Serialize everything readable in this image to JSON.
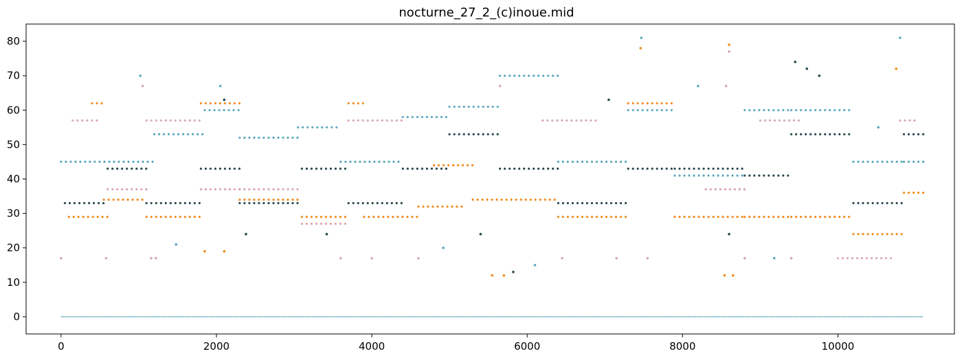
{
  "chart_data": {
    "type": "scatter",
    "title": "nocturne_27_2_(c)inoue.mid",
    "xlabel": "",
    "ylabel": "",
    "xlim": [
      -450,
      11500
    ],
    "ylim": [
      -5,
      85
    ],
    "x_ticks": [
      0,
      2000,
      4000,
      6000,
      8000,
      10000
    ],
    "y_ticks": [
      0,
      10,
      20,
      30,
      40,
      50,
      60,
      70,
      80
    ],
    "grid": false,
    "legend": "none",
    "colors": {
      "teal": "#5aa9bd",
      "orange": "#f28c1e",
      "pink": "#d9a8b0",
      "dark": "#2d4a52",
      "baseline": "#6fb0c4"
    },
    "series": [
      {
        "color": "teal",
        "segments": [
          {
            "x0": 0,
            "x1": 1200,
            "y": 45
          },
          {
            "x0": 1200,
            "x1": 1850,
            "y": 53
          },
          {
            "x0": 1850,
            "x1": 2300,
            "y": 60
          },
          {
            "x0": 2300,
            "x1": 3050,
            "y": 52
          },
          {
            "x0": 3050,
            "x1": 3600,
            "y": 55
          },
          {
            "x0": 3600,
            "x1": 4400,
            "y": 45
          },
          {
            "x0": 4400,
            "x1": 5000,
            "y": 58
          },
          {
            "x0": 5000,
            "x1": 5650,
            "y": 61
          },
          {
            "x0": 5650,
            "x1": 6400,
            "y": 70
          },
          {
            "x0": 6400,
            "x1": 7300,
            "y": 45
          },
          {
            "x0": 7300,
            "x1": 7900,
            "y": 60
          },
          {
            "x0": 7900,
            "x1": 8800,
            "y": 41
          },
          {
            "x0": 8800,
            "x1": 9400,
            "y": 60
          },
          {
            "x0": 9400,
            "x1": 10200,
            "y": 60
          },
          {
            "x0": 10200,
            "x1": 10850,
            "y": 45
          },
          {
            "x0": 10850,
            "x1": 11100,
            "y": 45
          }
        ],
        "points": [
          [
            1020,
            70
          ],
          [
            1480,
            21
          ],
          [
            2050,
            67
          ],
          [
            4920,
            20
          ],
          [
            6100,
            15
          ],
          [
            7470,
            81
          ],
          [
            8200,
            67
          ],
          [
            9180,
            17
          ],
          [
            10520,
            55
          ],
          [
            10800,
            81
          ]
        ]
      },
      {
        "color": "orange",
        "segments": [
          {
            "x0": 100,
            "x1": 600,
            "y": 29
          },
          {
            "x0": 400,
            "x1": 550,
            "y": 62
          },
          {
            "x0": 550,
            "x1": 1100,
            "y": 34
          },
          {
            "x0": 1100,
            "x1": 1800,
            "y": 29
          },
          {
            "x0": 1800,
            "x1": 2300,
            "y": 62
          },
          {
            "x0": 2300,
            "x1": 3100,
            "y": 34
          },
          {
            "x0": 3100,
            "x1": 3700,
            "y": 29
          },
          {
            "x0": 3700,
            "x1": 3900,
            "y": 62
          },
          {
            "x0": 3900,
            "x1": 4600,
            "y": 29
          },
          {
            "x0": 4600,
            "x1": 5200,
            "y": 32
          },
          {
            "x0": 4800,
            "x1": 5300,
            "y": 44
          },
          {
            "x0": 5300,
            "x1": 6400,
            "y": 34
          },
          {
            "x0": 6400,
            "x1": 7300,
            "y": 29
          },
          {
            "x0": 7300,
            "x1": 7900,
            "y": 62
          },
          {
            "x0": 7900,
            "x1": 8800,
            "y": 29
          },
          {
            "x0": 8800,
            "x1": 9400,
            "y": 29
          },
          {
            "x0": 9400,
            "x1": 10200,
            "y": 29
          },
          {
            "x0": 10200,
            "x1": 10850,
            "y": 24
          },
          {
            "x0": 10850,
            "x1": 11100,
            "y": 36
          }
        ],
        "points": [
          [
            1850,
            19
          ],
          [
            2100,
            19
          ],
          [
            5550,
            12
          ],
          [
            5700,
            12
          ],
          [
            8540,
            12
          ],
          [
            8600,
            79
          ],
          [
            8650,
            12
          ],
          [
            10750,
            72
          ],
          [
            7460,
            78
          ]
        ]
      },
      {
        "color": "pink",
        "segments": [
          {
            "x0": 150,
            "x1": 500,
            "y": 57
          },
          {
            "x0": 600,
            "x1": 1100,
            "y": 37
          },
          {
            "x0": 1100,
            "x1": 1800,
            "y": 57
          },
          {
            "x0": 1800,
            "x1": 2300,
            "y": 37
          },
          {
            "x0": 2300,
            "x1": 3100,
            "y": 37
          },
          {
            "x0": 3100,
            "x1": 3700,
            "y": 27
          },
          {
            "x0": 3700,
            "x1": 4400,
            "y": 57
          },
          {
            "x0": 6200,
            "x1": 6900,
            "y": 57
          },
          {
            "x0": 8300,
            "x1": 8800,
            "y": 37
          },
          {
            "x0": 9000,
            "x1": 9500,
            "y": 57
          },
          {
            "x0": 10000,
            "x1": 10700,
            "y": 17
          },
          {
            "x0": 10800,
            "x1": 11000,
            "y": 57
          }
        ],
        "points": [
          [
            0,
            17
          ],
          [
            580,
            17
          ],
          [
            1160,
            17
          ],
          [
            1220,
            17
          ],
          [
            3600,
            17
          ],
          [
            4000,
            17
          ],
          [
            4600,
            17
          ],
          [
            6450,
            17
          ],
          [
            7150,
            17
          ],
          [
            7550,
            17
          ],
          [
            8800,
            17
          ],
          [
            9400,
            17
          ],
          [
            1050,
            67
          ],
          [
            5650,
            67
          ],
          [
            8560,
            67
          ],
          [
            8600,
            77
          ]
        ]
      },
      {
        "color": "dark",
        "segments": [
          {
            "x0": 50,
            "x1": 600,
            "y": 33
          },
          {
            "x0": 600,
            "x1": 1100,
            "y": 43
          },
          {
            "x0": 1100,
            "x1": 1800,
            "y": 33
          },
          {
            "x0": 1800,
            "x1": 2300,
            "y": 43
          },
          {
            "x0": 2300,
            "x1": 3100,
            "y": 33
          },
          {
            "x0": 3100,
            "x1": 3700,
            "y": 43
          },
          {
            "x0": 3700,
            "x1": 4400,
            "y": 33
          },
          {
            "x0": 4400,
            "x1": 5000,
            "y": 43
          },
          {
            "x0": 5000,
            "x1": 5650,
            "y": 53
          },
          {
            "x0": 5650,
            "x1": 6400,
            "y": 43
          },
          {
            "x0": 6400,
            "x1": 7300,
            "y": 33
          },
          {
            "x0": 7300,
            "x1": 7900,
            "y": 43
          },
          {
            "x0": 7900,
            "x1": 8800,
            "y": 43
          },
          {
            "x0": 8800,
            "x1": 9400,
            "y": 41
          },
          {
            "x0": 9400,
            "x1": 10200,
            "y": 53
          },
          {
            "x0": 10200,
            "x1": 10850,
            "y": 33
          },
          {
            "x0": 10850,
            "x1": 11100,
            "y": 53
          }
        ],
        "points": [
          [
            2100,
            63
          ],
          [
            5820,
            13
          ],
          [
            7050,
            63
          ],
          [
            9450,
            74
          ],
          [
            9600,
            72
          ],
          [
            9760,
            70
          ],
          [
            8600,
            24
          ],
          [
            2380,
            24
          ],
          [
            3420,
            24
          ],
          [
            5400,
            24
          ]
        ]
      },
      {
        "color": "baseline",
        "segments": [
          {
            "x0": 0,
            "x1": 11100,
            "y": 0
          }
        ],
        "points": []
      }
    ]
  }
}
